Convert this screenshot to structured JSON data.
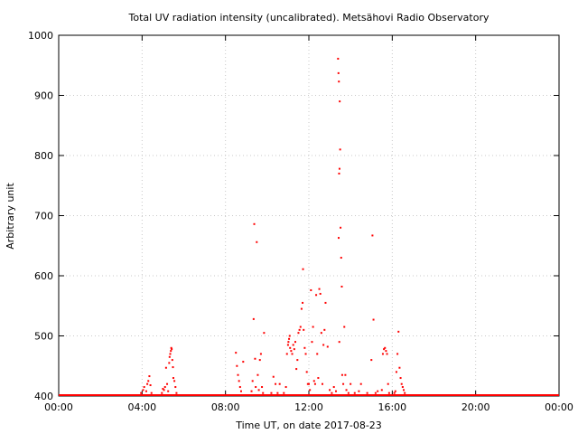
{
  "chart_data": {
    "type": "scatter",
    "title": "Total UV radiation intensity (uncalibrated). Metsähovi Radio Observatory",
    "xlabel": "Time UT, on date 2017-08-23",
    "ylabel": "Arbitrary unit",
    "xlim": [
      0,
      24
    ],
    "ylim": [
      400,
      1000
    ],
    "x_unit": "hours UT",
    "x_ticks": [
      {
        "value": 0,
        "label": "00:00"
      },
      {
        "value": 4,
        "label": "04:00"
      },
      {
        "value": 8,
        "label": "08:00"
      },
      {
        "value": 12,
        "label": "12:00"
      },
      {
        "value": 16,
        "label": "16:00"
      },
      {
        "value": 20,
        "label": "20:00"
      },
      {
        "value": 24,
        "label": "00:00"
      }
    ],
    "y_ticks": [
      400,
      500,
      600,
      700,
      800,
      900,
      1000
    ],
    "grid": true,
    "grid_style": "dotted",
    "legend": "none",
    "colors": {
      "points": "#ff0000",
      "grid": "#c8c8c8",
      "axis": "#000000"
    },
    "baseline": {
      "value": 400,
      "x_from": 0,
      "x_to": 24
    },
    "series": [
      {
        "color": "#ff0000",
        "points": [
          [
            3.95,
            405
          ],
          [
            4.05,
            410
          ],
          [
            4.1,
            415
          ],
          [
            4.2,
            408
          ],
          [
            4.25,
            420
          ],
          [
            4.3,
            425
          ],
          [
            4.35,
            433
          ],
          [
            4.4,
            418
          ],
          [
            4.45,
            405
          ],
          [
            4.95,
            405
          ],
          [
            5.0,
            412
          ],
          [
            5.05,
            410
          ],
          [
            5.1,
            415
          ],
          [
            5.15,
            447
          ],
          [
            5.2,
            420
          ],
          [
            5.25,
            408
          ],
          [
            5.3,
            455
          ],
          [
            5.32,
            465
          ],
          [
            5.35,
            470
          ],
          [
            5.38,
            475
          ],
          [
            5.4,
            480
          ],
          [
            5.42,
            478
          ],
          [
            5.45,
            460
          ],
          [
            5.48,
            448
          ],
          [
            5.5,
            430
          ],
          [
            5.55,
            425
          ],
          [
            5.6,
            415
          ],
          [
            5.65,
            405
          ],
          [
            8.5,
            472
          ],
          [
            8.55,
            450
          ],
          [
            8.6,
            435
          ],
          [
            8.65,
            425
          ],
          [
            8.7,
            415
          ],
          [
            8.75,
            408
          ],
          [
            8.85,
            457
          ],
          [
            9.25,
            408
          ],
          [
            9.3,
            425
          ],
          [
            9.35,
            528
          ],
          [
            9.38,
            686
          ],
          [
            9.42,
            462
          ],
          [
            9.45,
            415
          ],
          [
            9.5,
            656
          ],
          [
            9.55,
            435
          ],
          [
            9.6,
            410
          ],
          [
            9.65,
            460
          ],
          [
            9.7,
            470
          ],
          [
            9.75,
            415
          ],
          [
            9.8,
            405
          ],
          [
            9.85,
            505
          ],
          [
            10.2,
            405
          ],
          [
            10.3,
            432
          ],
          [
            10.4,
            420
          ],
          [
            10.5,
            405
          ],
          [
            10.6,
            420
          ],
          [
            10.8,
            405
          ],
          [
            10.9,
            415
          ],
          [
            10.95,
            470
          ],
          [
            11.0,
            485
          ],
          [
            11.02,
            490
          ],
          [
            11.05,
            495
          ],
          [
            11.08,
            500
          ],
          [
            11.1,
            480
          ],
          [
            11.15,
            475
          ],
          [
            11.2,
            470
          ],
          [
            11.25,
            485
          ],
          [
            11.3,
            478
          ],
          [
            11.35,
            490
          ],
          [
            11.4,
            445
          ],
          [
            11.45,
            460
          ],
          [
            11.5,
            505
          ],
          [
            11.55,
            510
          ],
          [
            11.6,
            515
          ],
          [
            11.65,
            545
          ],
          [
            11.7,
            555
          ],
          [
            11.72,
            611
          ],
          [
            11.75,
            510
          ],
          [
            11.8,
            480
          ],
          [
            11.85,
            470
          ],
          [
            11.9,
            440
          ],
          [
            11.95,
            420
          ],
          [
            12.0,
            420
          ],
          [
            12.05,
            410
          ],
          [
            12.1,
            576
          ],
          [
            12.15,
            490
          ],
          [
            12.2,
            515
          ],
          [
            12.25,
            425
          ],
          [
            12.3,
            420
          ],
          [
            12.35,
            568
          ],
          [
            12.4,
            470
          ],
          [
            12.45,
            430
          ],
          [
            12.5,
            578
          ],
          [
            12.55,
            570
          ],
          [
            12.6,
            505
          ],
          [
            12.65,
            420
          ],
          [
            12.7,
            485
          ],
          [
            12.75,
            510
          ],
          [
            12.8,
            555
          ],
          [
            12.9,
            482
          ],
          [
            13.0,
            410
          ],
          [
            13.1,
            405
          ],
          [
            13.2,
            415
          ],
          [
            13.3,
            408
          ],
          [
            13.4,
            961
          ],
          [
            13.42,
            937
          ],
          [
            13.44,
            923
          ],
          [
            13.46,
            490
          ],
          [
            13.48,
            890
          ],
          [
            13.5,
            810
          ],
          [
            13.45,
            770
          ],
          [
            13.47,
            778
          ],
          [
            13.43,
            663
          ],
          [
            13.52,
            680
          ],
          [
            13.55,
            630
          ],
          [
            13.58,
            582
          ],
          [
            13.6,
            435
          ],
          [
            13.65,
            420
          ],
          [
            13.7,
            515
          ],
          [
            13.75,
            435
          ],
          [
            13.8,
            410
          ],
          [
            13.9,
            405
          ],
          [
            14.0,
            420
          ],
          [
            14.2,
            405
          ],
          [
            14.4,
            408
          ],
          [
            14.5,
            420
          ],
          [
            14.8,
            405
          ],
          [
            15.0,
            460
          ],
          [
            15.05,
            667
          ],
          [
            15.1,
            527
          ],
          [
            15.2,
            405
          ],
          [
            15.3,
            408
          ],
          [
            15.5,
            410
          ],
          [
            15.55,
            470
          ],
          [
            15.6,
            478
          ],
          [
            15.65,
            480
          ],
          [
            15.7,
            475
          ],
          [
            15.75,
            470
          ],
          [
            15.8,
            420
          ],
          [
            15.85,
            405
          ],
          [
            16.1,
            405
          ],
          [
            16.15,
            408
          ],
          [
            16.2,
            440
          ],
          [
            16.25,
            470
          ],
          [
            16.3,
            507
          ],
          [
            16.35,
            447
          ],
          [
            16.4,
            430
          ],
          [
            16.45,
            420
          ],
          [
            16.5,
            415
          ],
          [
            16.55,
            410
          ],
          [
            16.6,
            405
          ]
        ]
      }
    ]
  }
}
